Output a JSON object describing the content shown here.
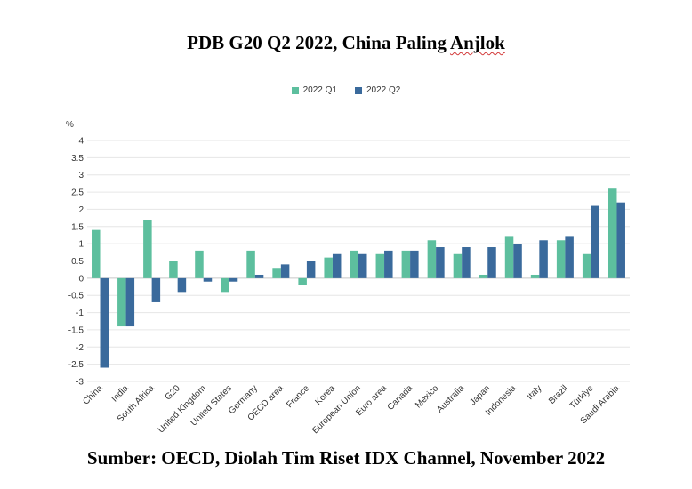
{
  "title_main": "PDB G20 Q2 2022, China Paling ",
  "title_squiggle": "Anjlok",
  "source": "Sumber: OECD, Diolah Tim Riset IDX Channel, November 2022",
  "colors": {
    "q1": "#5dbf9e",
    "q2": "#3a6a9c",
    "grid": "#e6e6e6",
    "axis": "#c8c8c8"
  },
  "chart_data": {
    "type": "bar",
    "ylabel": "%",
    "ylim": [
      -3,
      4
    ],
    "yticks": [
      "4",
      "3.5",
      "3",
      "2.5",
      "2",
      "1.5",
      "1",
      "0.5",
      "0",
      "-0.5",
      "-1",
      "-1.5",
      "-2",
      "-2.5",
      "-3"
    ],
    "grid": true,
    "legend_position": "top-center",
    "categories": [
      "China",
      "India",
      "South Africa",
      "G20",
      "United Kingdom",
      "United States",
      "Germany",
      "OECD area",
      "France",
      "Korea",
      "European Union",
      "Euro area",
      "Canada",
      "Mexico",
      "Australia",
      "Japan",
      "Indonesia",
      "Italy",
      "Brazil",
      "Türkiye",
      "Saudi Arabia"
    ],
    "series": [
      {
        "name": "2022 Q1",
        "values": [
          1.4,
          -1.4,
          1.7,
          0.5,
          0.8,
          -0.4,
          0.8,
          0.3,
          -0.2,
          0.6,
          0.8,
          0.7,
          0.8,
          1.1,
          0.7,
          0.1,
          1.2,
          0.1,
          1.1,
          0.7,
          2.6
        ]
      },
      {
        "name": "2022 Q2",
        "values": [
          -2.6,
          -1.4,
          -0.7,
          -0.4,
          -0.1,
          -0.1,
          0.1,
          0.4,
          0.5,
          0.7,
          0.7,
          0.8,
          0.8,
          0.9,
          0.9,
          0.9,
          1.0,
          1.1,
          1.2,
          2.1,
          2.2
        ]
      }
    ]
  }
}
